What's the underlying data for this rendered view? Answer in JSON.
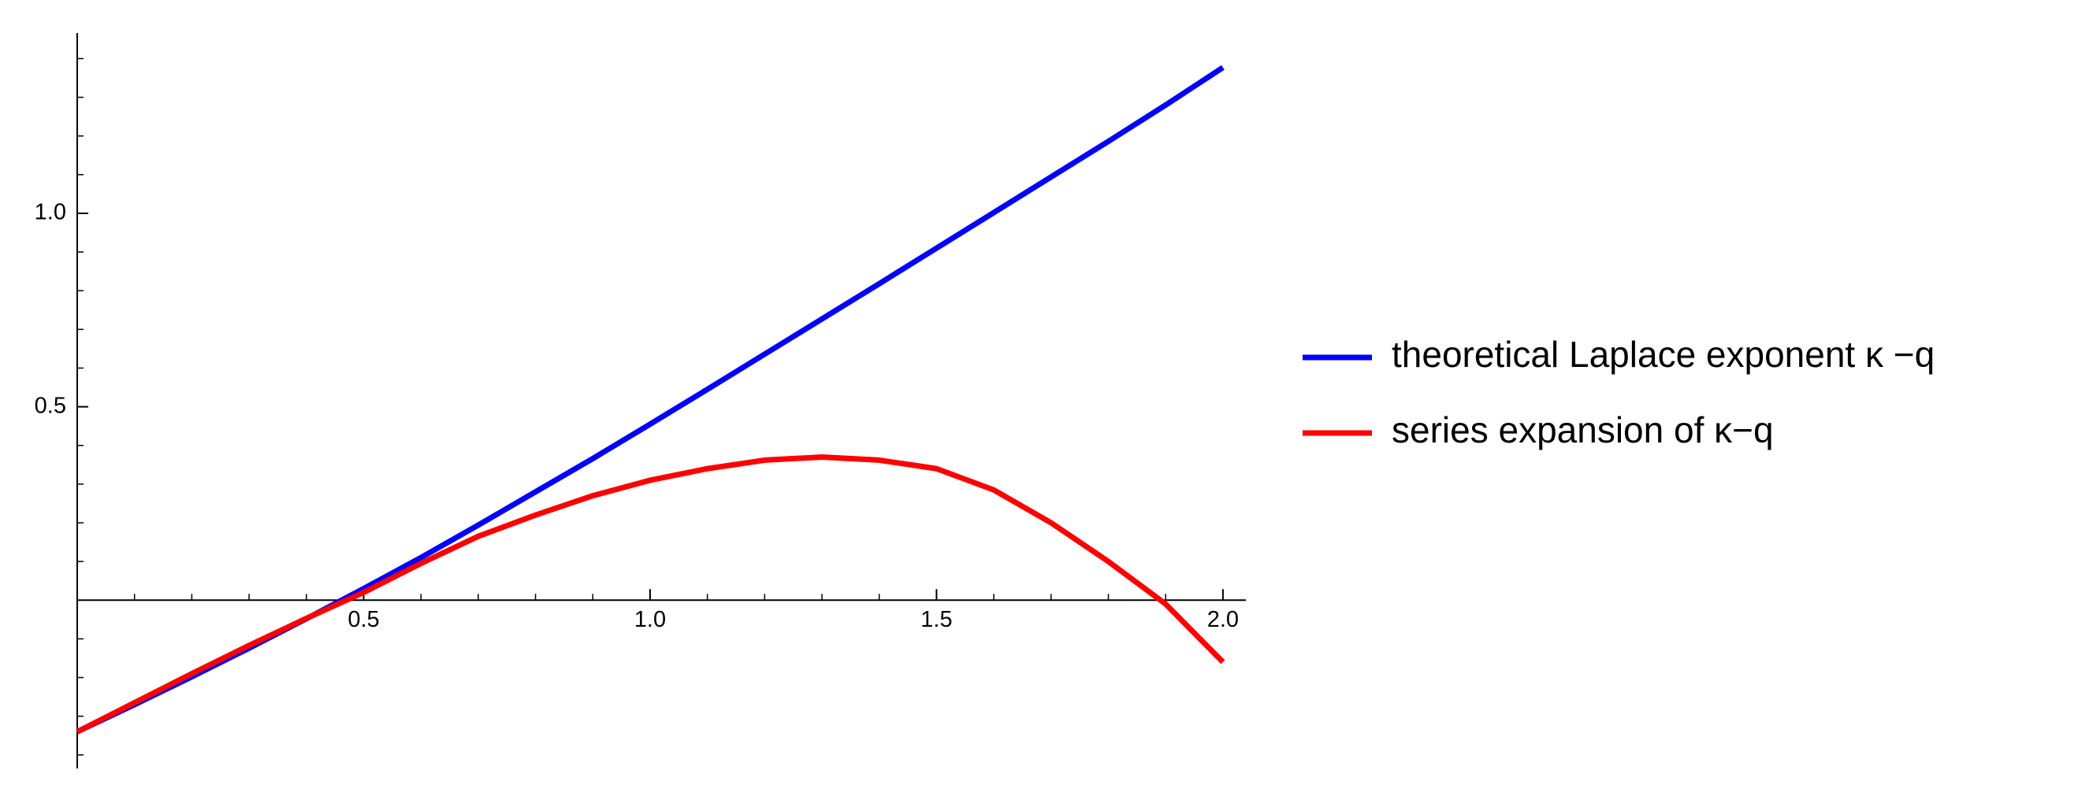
{
  "chart_data": {
    "type": "line",
    "x": [
      0,
      0.1,
      0.2,
      0.3,
      0.4,
      0.5,
      0.6,
      0.7,
      0.8,
      0.9,
      1.0,
      1.1,
      1.2,
      1.3,
      1.4,
      1.5,
      1.6,
      1.7,
      1.8,
      1.9,
      2.0
    ],
    "series": [
      {
        "name": "theoretical Laplace exponent κ −q",
        "color": "#0000ff",
        "values": [
          -0.34,
          -0.27,
          -0.198,
          -0.124,
          -0.048,
          0.03,
          0.11,
          0.194,
          0.28,
          0.366,
          0.455,
          0.545,
          0.636,
          0.727,
          0.818,
          0.91,
          1.002,
          1.094,
          1.186,
          1.28,
          1.377
        ]
      },
      {
        "name": "series expansion of  κ−q",
        "color": "#ff0000",
        "values": [
          -0.34,
          -0.265,
          -0.19,
          -0.117,
          -0.047,
          0.02,
          0.095,
          0.165,
          0.22,
          0.27,
          0.31,
          0.34,
          0.362,
          0.37,
          0.362,
          0.34,
          0.285,
          0.2,
          0.1,
          -0.01,
          -0.16
        ]
      }
    ],
    "xlim": [
      0,
      2.04
    ],
    "ylim": [
      -0.435,
      1.466
    ],
    "xticks": [
      0.5,
      {
        "value": 1,
        "label": "1.0"
      },
      1.5,
      {
        "value": 2,
        "label": "2.0"
      }
    ],
    "yticks": [
      0.5,
      {
        "value": 1,
        "label": "1.0"
      }
    ],
    "xminorticks": [
      0.1,
      0.2,
      0.3,
      0.4,
      0.6,
      0.7,
      0.8,
      0.9,
      1.1,
      1.2,
      1.3,
      1.4,
      1.6,
      1.7,
      1.8,
      1.9
    ],
    "yminorticks": [
      -0.4,
      -0.3,
      -0.2,
      -0.1,
      0.1,
      0.2,
      0.3,
      0.4,
      0.6,
      0.7,
      0.8,
      0.9,
      1.1,
      1.2,
      1.3,
      1.4
    ],
    "legend": "right"
  }
}
